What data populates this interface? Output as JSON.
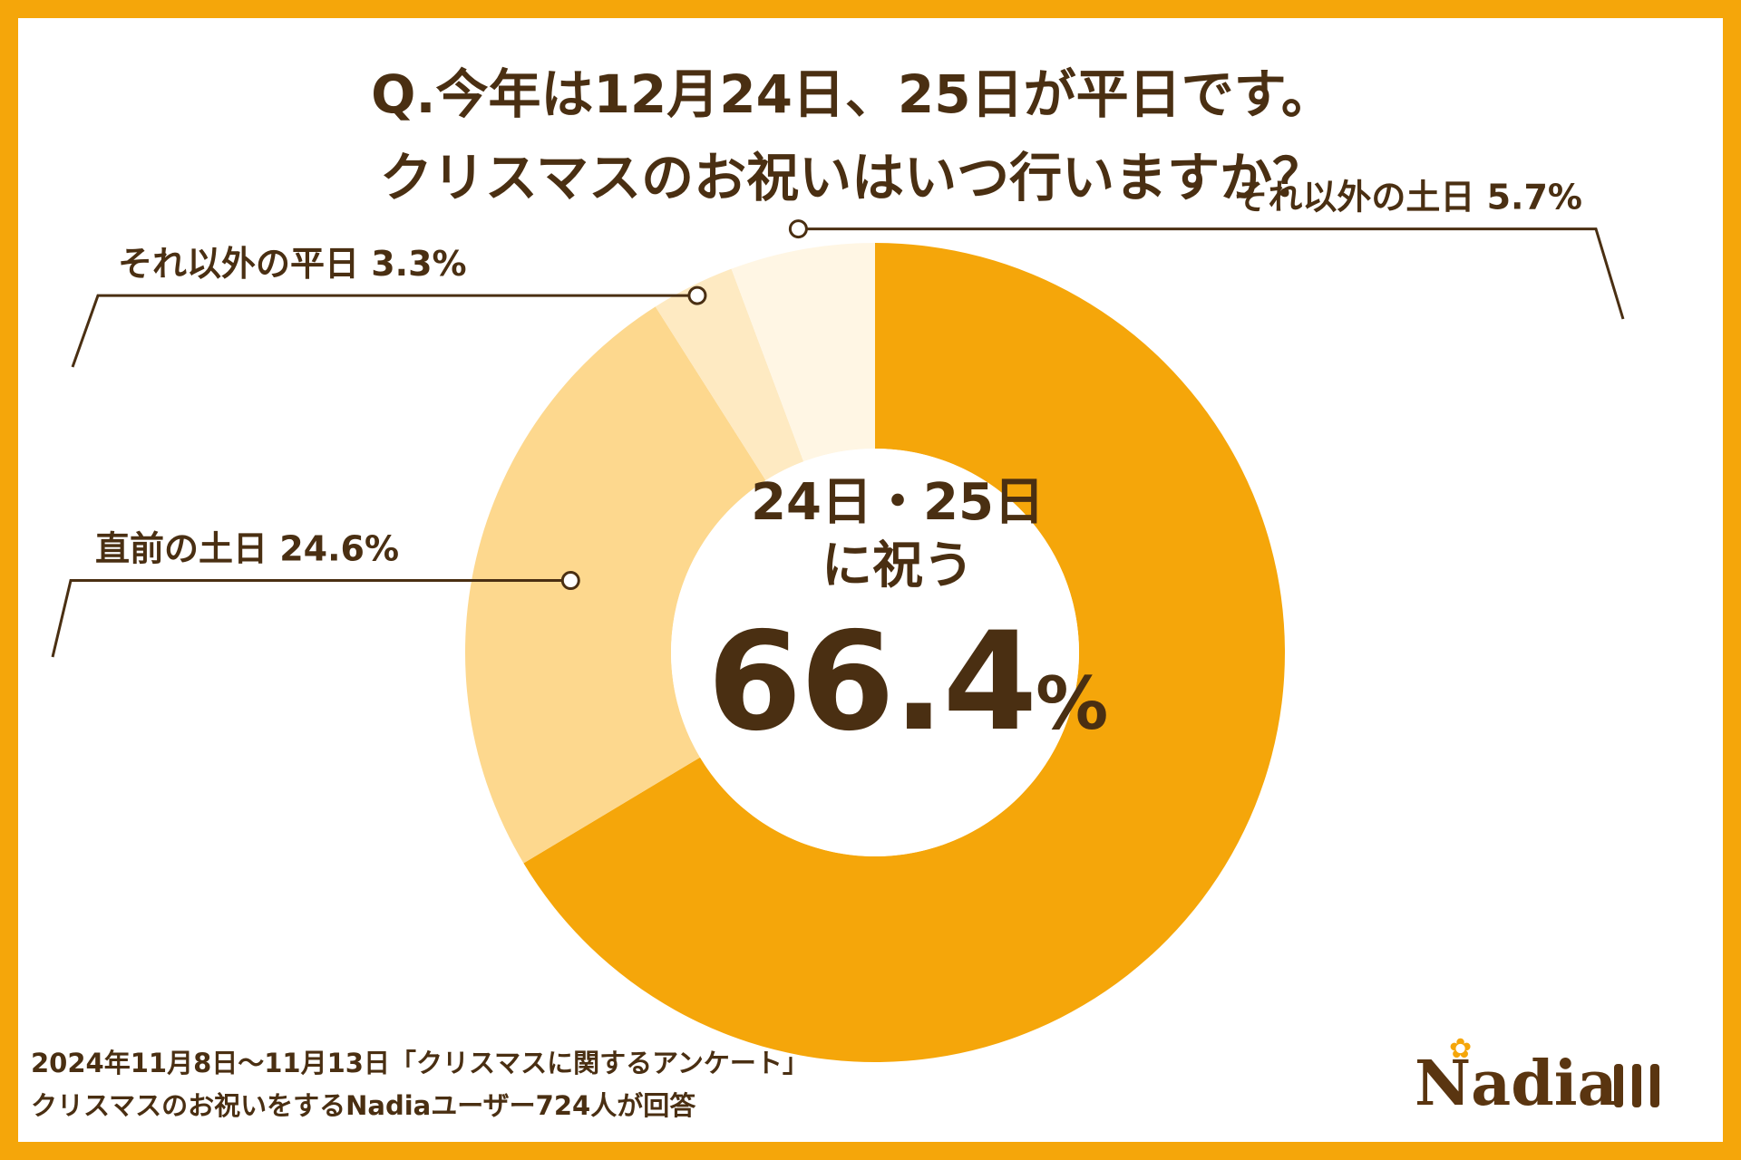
{
  "title": {
    "line1": "Q.今年は12月24日、25日が平日です。",
    "line2": "クリスマスのお祝いはいつ行いますか？"
  },
  "center": {
    "line1": "24日・25日",
    "line2": "に祝う",
    "value": "66.4",
    "unit": "%"
  },
  "footer": {
    "line1": "2024年11月8日〜11月13日「クリスマスに関するアンケート」",
    "line2": "クリスマスのお祝いをするNadiaユーザー724人が回答"
  },
  "logo": {
    "text": "Nadia"
  },
  "colors": {
    "frame": "#f5a60a",
    "slice_main": "#f5a60a",
    "slice_before": "#fdd88e",
    "slice_weekday": "#feeac2",
    "slice_weekend": "#fff6e4",
    "text": "#4a2f12"
  },
  "chart_data": {
    "type": "pie",
    "categories": [
      "24日・25日に祝う",
      "直前の土日",
      "それ以外の平日",
      "それ以外の土日"
    ],
    "values": [
      66.4,
      24.6,
      3.3,
      5.7
    ],
    "labels": [
      "",
      "直前の土日 24.6%",
      "それ以外の平日 3.3%",
      "それ以外の土日 5.7%"
    ],
    "title": "Q.今年は12月24日、25日が平日です。クリスマスのお祝いはいつ行いますか？",
    "unit": "%",
    "donut": true
  }
}
